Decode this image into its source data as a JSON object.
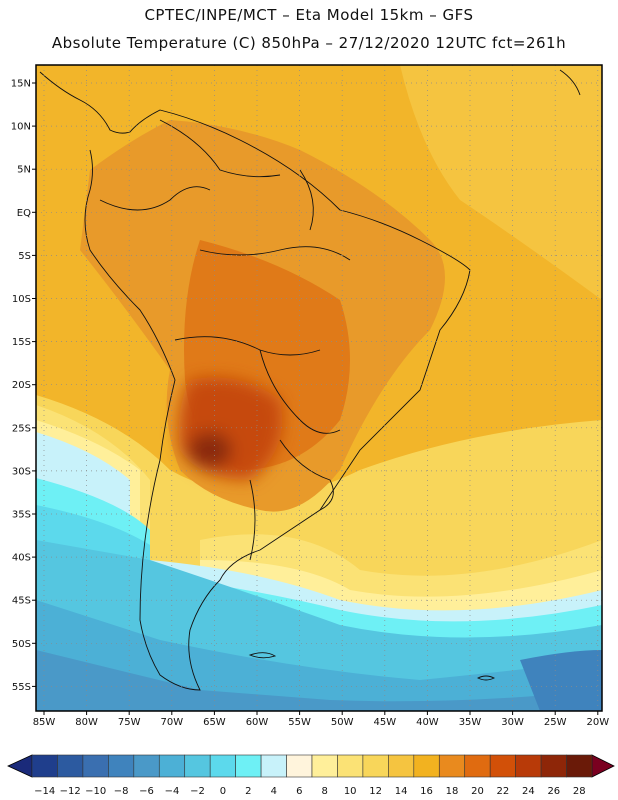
{
  "header": {
    "line1": "CPTEC/INPE/MCT –  Eta Model 15km – GFS",
    "line2": "Absolute Temperature (C) 850hPa – 27/12/2020 12UTC fct=261h"
  },
  "lat_labels": [
    "15N",
    "10N",
    "5N",
    "EQ",
    "5S",
    "10S",
    "15S",
    "20S",
    "25S",
    "30S",
    "35S",
    "40S",
    "45S",
    "50S",
    "55S"
  ],
  "lon_labels": [
    "85W",
    "80W",
    "75W",
    "70W",
    "65W",
    "60W",
    "55W",
    "50W",
    "45W",
    "40W",
    "35W",
    "30W",
    "25W",
    "20W"
  ],
  "colorbar": {
    "labels": [
      "-14",
      "-12",
      "-10",
      "-8",
      "-6",
      "-4",
      "-2",
      "0",
      "2",
      "4",
      "6",
      "8",
      "10",
      "12",
      "14",
      "16",
      "18",
      "20",
      "22",
      "24",
      "26",
      "28"
    ],
    "colors": [
      "#1f3e8c",
      "#2c5aa0",
      "#3a6fb0",
      "#3f83bd",
      "#4a99c8",
      "#4cb0d6",
      "#55c6e0",
      "#5cd9ec",
      "#6ef0f5",
      "#c8f2fa",
      "#fff4dc",
      "#ffef9a",
      "#fbe275",
      "#f8d65a",
      "#f5c440",
      "#f2b220",
      "#e98a1e",
      "#e06b10",
      "#d25008",
      "#b83a08",
      "#8e2608",
      "#6a1a08"
    ],
    "under_color": "#1a2a7a",
    "over_color": "#7a0020"
  },
  "map": {
    "ocean_color": "#f2b52a",
    "land_color": "#e89a2a",
    "hot_color": "#c64a10",
    "core_color": "#8a2a0c"
  }
}
